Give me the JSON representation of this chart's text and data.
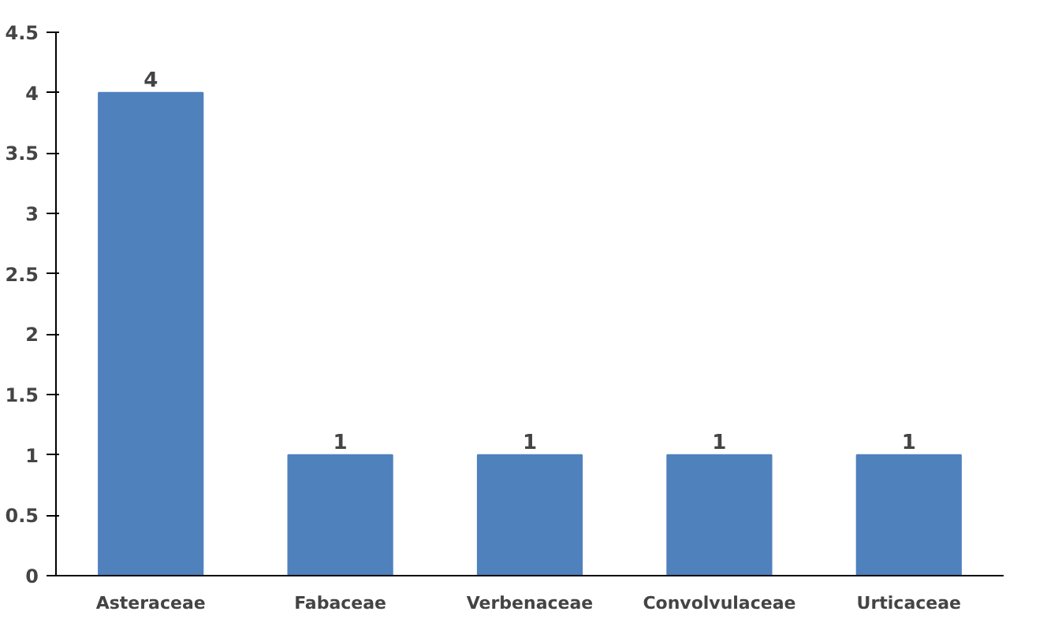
{
  "chart_data": {
    "type": "bar",
    "categories": [
      "Asteraceae",
      "Fabaceae",
      "Verbenaceae",
      "Convolvulaceae",
      "Urticaceae"
    ],
    "values": [
      4,
      1,
      1,
      1,
      1
    ],
    "color": "#4f81bd",
    "ylim": [
      0,
      4.5
    ],
    "yticks": [
      0,
      0.5,
      1,
      1.5,
      2,
      2.5,
      3,
      3.5,
      4,
      4.5
    ],
    "data_labels": true
  }
}
